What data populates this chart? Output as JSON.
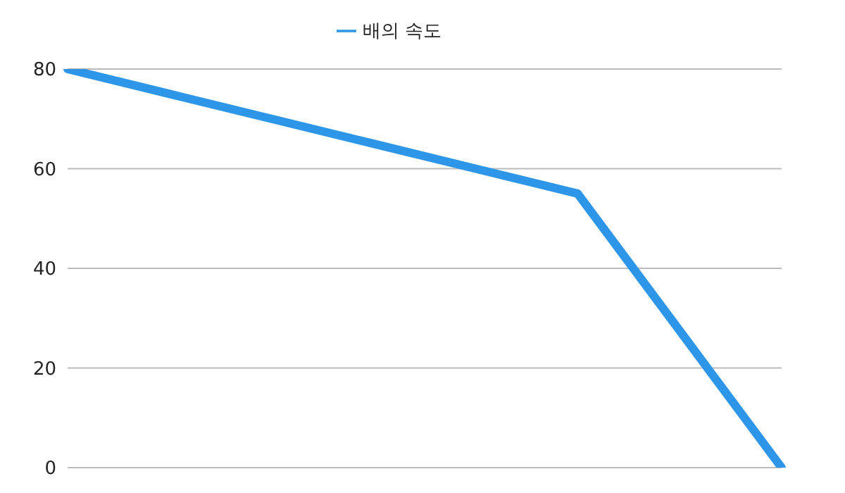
{
  "chart_data": {
    "type": "line",
    "categories": [
      null,
      null,
      null,
      null,
      null,
      null,
      null,
      null
    ],
    "series": [
      {
        "name": "배의 속도",
        "color": "#2d96e8",
        "values": [
          80,
          75,
          70,
          65,
          60,
          55,
          27.5,
          0
        ]
      }
    ],
    "ylim": [
      0,
      80
    ],
    "yticks": [
      0,
      20,
      40,
      60,
      80
    ],
    "grid": "y",
    "legend": "top",
    "marker": "none",
    "line_style": "solid"
  }
}
